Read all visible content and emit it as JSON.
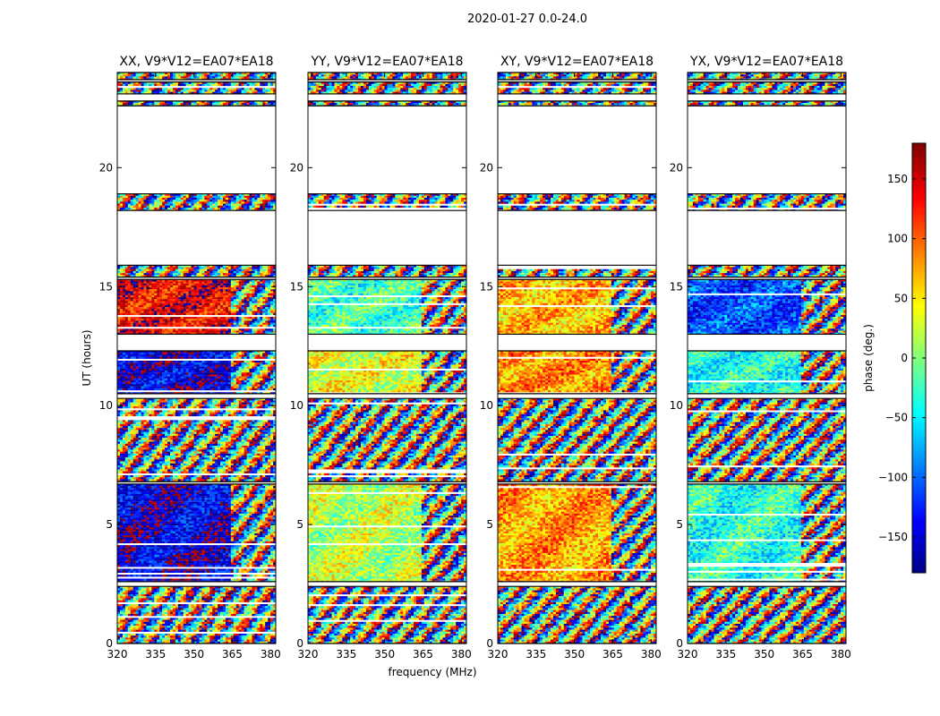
{
  "suptitle": "2020-01-27 0.0-24.0",
  "chart_data": {
    "type": "heatmap",
    "title": "2020-01-27 0.0-24.0",
    "xlabel": "frequency (MHz)",
    "ylabel": "UT (hours)",
    "xlim": [
      320,
      382
    ],
    "ylim": [
      0,
      24
    ],
    "xticks": [
      320,
      335,
      350,
      365,
      380
    ],
    "yticks": [
      0,
      5,
      10,
      15,
      20
    ],
    "panels": [
      {
        "title": "XX, V9*V12=EA07*EA18",
        "pol": "XX"
      },
      {
        "title": "YY, V9*V12=EA07*EA18",
        "pol": "YY"
      },
      {
        "title": "XY, V9*V12=EA07*EA18",
        "pol": "XY"
      },
      {
        "title": "YX, V9*V12=EA07*EA18",
        "pol": "YX"
      }
    ],
    "time_blocks_hours": [
      {
        "start": 0.0,
        "end": 2.4,
        "phase": null
      },
      {
        "start": 2.6,
        "end": 6.7,
        "phase": {
          "XX": -150,
          "YY": 20,
          "XY": 80,
          "YX": -30
        }
      },
      {
        "start": 6.8,
        "end": 10.3,
        "phase": null
      },
      {
        "start": 10.5,
        "end": 12.3,
        "phase": {
          "XX": -150,
          "YY": 35,
          "XY": 85,
          "YX": -35
        }
      },
      {
        "start": 13.0,
        "end": 15.3,
        "phase": {
          "XX": 140,
          "YY": -20,
          "XY": 70,
          "YX": -110
        }
      },
      {
        "start": 15.4,
        "end": 15.9,
        "phase": null
      },
      {
        "start": 18.2,
        "end": 18.9,
        "phase": null
      },
      {
        "start": 22.6,
        "end": 22.8,
        "phase": null
      },
      {
        "start": 23.1,
        "end": 23.6,
        "phase": null
      },
      {
        "start": 23.7,
        "end": 24.0,
        "phase": null
      }
    ],
    "colorbar": {
      "label": "phase (deg.)",
      "range": [
        -180,
        180
      ],
      "ticks": [
        150,
        100,
        50,
        0,
        -50,
        -100,
        -150
      ],
      "tick_labels": [
        "150",
        "100",
        "50",
        "0",
        "−50",
        "−100",
        "−150"
      ],
      "colormap": "jet"
    }
  }
}
